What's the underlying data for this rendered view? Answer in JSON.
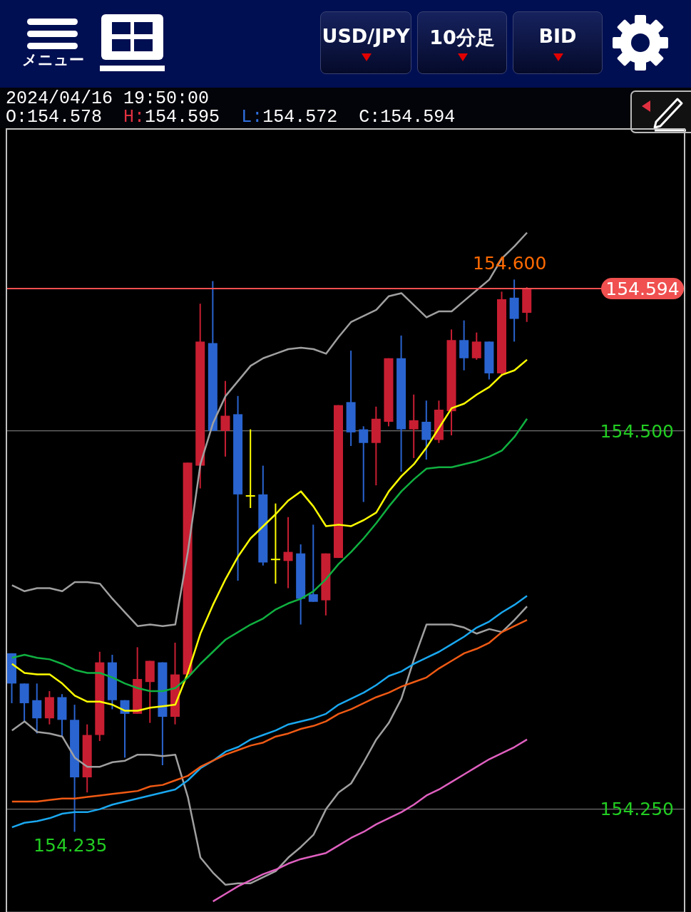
{
  "chart_data": {
    "type": "candlestick",
    "title": "2024/04/16 19:50:00",
    "subtitle": "O:154.578 H:154.595 L:154.572 C:154.594",
    "categories": [
      null,
      null,
      null,
      null,
      null,
      null,
      null,
      null,
      null,
      null,
      null,
      null,
      null,
      null,
      null,
      null,
      null,
      null,
      null,
      null,
      null,
      null,
      null,
      null,
      null,
      null,
      null,
      null,
      null,
      null,
      null,
      null,
      null,
      null,
      null,
      null,
      null,
      null,
      null,
      null,
      null,
      null
    ],
    "ohlc": [
      [
        154.353,
        154.353,
        154.32,
        154.333
      ],
      [
        154.333,
        154.333,
        154.308,
        154.32
      ],
      [
        154.322,
        154.333,
        154.3,
        154.31
      ],
      [
        154.31,
        154.328,
        154.306,
        154.324
      ],
      [
        154.324,
        154.326,
        154.298,
        154.309
      ],
      [
        154.309,
        154.319,
        154.235,
        154.271
      ],
      [
        154.271,
        154.306,
        154.261,
        154.299
      ],
      [
        154.299,
        154.354,
        154.295,
        154.347
      ],
      [
        154.347,
        154.352,
        154.316,
        154.322
      ],
      [
        154.322,
        154.322,
        154.284,
        154.313
      ],
      [
        154.313,
        154.357,
        154.313,
        154.336
      ],
      [
        154.334,
        154.348,
        154.307,
        154.348
      ],
      [
        154.347,
        154.347,
        154.279,
        154.311
      ],
      [
        154.311,
        154.36,
        154.306,
        154.339
      ],
      [
        154.339,
        154.479,
        154.339,
        154.479
      ],
      [
        154.477,
        154.584,
        154.462,
        154.559
      ],
      [
        154.558,
        154.599,
        154.5,
        154.5
      ],
      [
        154.5,
        154.533,
        154.483,
        154.51
      ],
      [
        154.511,
        154.523,
        154.401,
        154.458
      ],
      [
        154.457,
        154.501,
        154.449,
        154.457
      ],
      [
        154.458,
        154.477,
        154.411,
        154.413
      ],
      [
        154.415,
        154.452,
        154.399,
        154.415
      ],
      [
        154.414,
        154.443,
        154.396,
        154.42
      ],
      [
        154.419,
        154.425,
        154.372,
        154.389
      ],
      [
        154.392,
        154.438,
        154.387,
        154.387
      ],
      [
        154.388,
        154.419,
        154.378,
        154.419
      ],
      [
        154.416,
        154.517,
        154.416,
        154.517
      ],
      [
        154.519,
        154.553,
        154.49,
        154.499
      ],
      [
        154.501,
        154.503,
        154.453,
        154.492
      ],
      [
        154.492,
        154.516,
        154.464,
        154.508
      ],
      [
        154.506,
        154.548,
        154.503,
        154.548
      ],
      [
        154.548,
        154.563,
        154.473,
        154.501
      ],
      [
        154.501,
        154.524,
        154.482,
        154.507
      ],
      [
        154.506,
        154.52,
        154.481,
        154.494
      ],
      [
        154.494,
        154.52,
        154.492,
        154.514
      ],
      [
        154.513,
        154.567,
        154.497,
        154.56
      ],
      [
        154.56,
        154.573,
        154.54,
        154.548
      ],
      [
        154.548,
        154.565,
        154.547,
        154.559
      ],
      [
        154.559,
        154.559,
        154.534,
        154.538
      ],
      [
        154.538,
        154.592,
        154.536,
        154.587
      ],
      [
        154.588,
        154.6,
        154.559,
        154.574
      ],
      [
        154.578,
        154.595,
        154.572,
        154.594
      ]
    ],
    "colors": [
      "#2a64d0",
      "#2a64d0",
      "#2a64d0",
      "#c81e32",
      "#2a64d0",
      "#2a64d0",
      "#c81e32",
      "#c81e32",
      "#2a64d0",
      "#2a64d0",
      "#c81e32",
      "#c81e32",
      "#2a64d0",
      "#c81e32",
      "#c81e32",
      "#c81e32",
      "#2a64d0",
      "#c81e32",
      "#2a64d0",
      "#ffff00",
      "#2a64d0",
      "#ffff00",
      "#c81e32",
      "#2a64d0",
      "#2a64d0",
      "#c81e32",
      "#c81e32",
      "#2a64d0",
      "#2a64d0",
      "#c81e32",
      "#c81e32",
      "#2a64d0",
      "#c81e32",
      "#2a64d0",
      "#c81e32",
      "#c81e32",
      "#2a64d0",
      "#c81e32",
      "#2a64d0",
      "#c81e32",
      "#2a64d0",
      "#c81e32"
    ],
    "series": [
      {
        "type": "line",
        "color": "#ffff00",
        "values": [
          154.346,
          154.34,
          154.339,
          154.339,
          154.333,
          154.325,
          154.321,
          154.321,
          154.319,
          154.315,
          154.315,
          154.317,
          154.318,
          154.319,
          154.34,
          154.366,
          154.385,
          154.402,
          154.417,
          154.429,
          154.437,
          154.445,
          154.454,
          154.46,
          154.45,
          154.437,
          154.438,
          154.437,
          154.441,
          154.446,
          154.46,
          154.47,
          154.478,
          154.489,
          154.502,
          154.515,
          154.518,
          154.524,
          154.529,
          154.537,
          154.54,
          154.547
        ]
      },
      {
        "type": "line",
        "color": "#10b040",
        "values": [
          154.35,
          154.352,
          154.35,
          154.349,
          154.346,
          154.342,
          154.34,
          154.34,
          154.337,
          154.333,
          154.33,
          154.328,
          154.328,
          154.33,
          154.337,
          154.346,
          154.354,
          154.362,
          154.367,
          154.372,
          154.376,
          154.382,
          154.386,
          154.389,
          154.394,
          154.402,
          154.412,
          154.42,
          154.429,
          154.439,
          154.45,
          154.46,
          154.468,
          154.475,
          154.476,
          154.476,
          154.478,
          154.48,
          154.483,
          154.487,
          154.496,
          154.508
        ]
      },
      {
        "type": "line",
        "color": "#a0a0a0",
        "values": [
          154.398,
          154.394,
          154.396,
          154.396,
          154.394,
          154.4,
          154.4,
          154.399,
          154.389,
          154.38,
          154.371,
          154.372,
          154.371,
          154.372,
          154.42,
          154.478,
          154.505,
          154.523,
          154.533,
          154.543,
          154.548,
          154.551,
          154.554,
          154.555,
          154.554,
          154.551,
          154.562,
          154.572,
          154.576,
          154.58,
          154.589,
          154.591,
          154.583,
          154.575,
          154.579,
          154.579,
          154.586,
          154.593,
          154.6,
          154.614,
          154.622,
          154.631
        ]
      },
      {
        "type": "line",
        "color": "#a0a0a0",
        "values": [
          154.302,
          154.308,
          154.301,
          154.3,
          154.298,
          154.284,
          154.278,
          154.278,
          154.281,
          154.282,
          154.286,
          154.286,
          154.285,
          154.286,
          154.258,
          154.218,
          154.208,
          154.2,
          154.201,
          154.201,
          154.205,
          154.209,
          154.218,
          154.225,
          154.233,
          154.25,
          154.261,
          154.267,
          154.281,
          154.296,
          154.307,
          154.323,
          154.349,
          154.372,
          154.372,
          154.372,
          154.37,
          154.366,
          154.369,
          154.367,
          154.375,
          154.384
        ]
      },
      {
        "type": "line",
        "color": "#1aa8f0",
        "values": [
          154.238,
          154.241,
          154.242,
          154.244,
          154.247,
          154.248,
          154.248,
          154.25,
          154.253,
          154.255,
          154.257,
          154.259,
          154.261,
          154.263,
          154.269,
          154.277,
          154.282,
          154.288,
          154.291,
          154.296,
          154.299,
          154.302,
          154.306,
          154.308,
          154.31,
          154.313,
          154.319,
          154.323,
          154.327,
          154.332,
          154.338,
          154.341,
          154.346,
          154.35,
          154.354,
          154.359,
          154.364,
          154.37,
          154.374,
          154.38,
          154.385,
          154.391
        ]
      },
      {
        "type": "line",
        "color": "#f05a14",
        "values": [
          154.255,
          154.255,
          154.255,
          154.256,
          154.257,
          154.257,
          154.258,
          154.259,
          154.26,
          154.261,
          154.262,
          154.265,
          154.266,
          154.269,
          154.272,
          154.278,
          154.282,
          154.286,
          154.289,
          154.292,
          154.294,
          154.298,
          154.3,
          154.303,
          154.305,
          154.308,
          154.313,
          154.316,
          154.32,
          154.324,
          154.327,
          154.331,
          154.334,
          154.337,
          154.343,
          154.348,
          154.353,
          154.356,
          154.36,
          154.367,
          154.371,
          154.375
        ]
      },
      {
        "type": "line",
        "color": "#e060c0",
        "values": [
          null,
          null,
          null,
          null,
          null,
          null,
          null,
          null,
          null,
          null,
          null,
          null,
          null,
          null,
          null,
          null,
          154.189,
          154.194,
          154.199,
          154.203,
          154.207,
          154.21,
          154.214,
          154.217,
          154.219,
          154.221,
          154.226,
          154.231,
          154.235,
          154.24,
          154.244,
          154.248,
          154.253,
          154.259,
          154.263,
          154.268,
          154.273,
          154.278,
          154.283,
          154.287,
          154.291,
          154.296
        ]
      }
    ],
    "ylim": [
      154.182,
      154.7
    ],
    "yticks": [
      {
        "value": 154.25,
        "label": "154.250"
      },
      {
        "value": 154.5,
        "label": "154.500"
      }
    ],
    "grid": "y",
    "tick_labels": "y",
    "ref_lines": [
      {
        "axis": "y",
        "value": 154.594,
        "label": "154.594",
        "color": "#f05050"
      }
    ],
    "annotations": [
      "メニュー",
      "USD/JPY",
      "10分足",
      "BID",
      "154.600",
      "154.235"
    ]
  }
}
